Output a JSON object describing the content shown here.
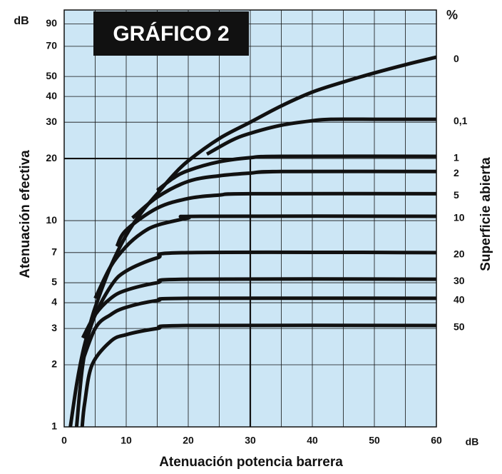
{
  "chart_data": {
    "type": "line",
    "title": "GRÁFICO 2",
    "y_axis_label": "Atenuación efectiva",
    "x_axis_label": "Atenuación potencia barrera",
    "y2_axis_label": "Superficie abierta",
    "y_unit": "dB",
    "x_unit": "dB",
    "series_unit": "%",
    "log_y": true,
    "grid": true,
    "background": "#cce6f5",
    "line_color": "#111111",
    "xlim": [
      0,
      60
    ],
    "xticks": [
      0,
      10,
      20,
      30,
      40,
      50,
      60
    ],
    "x_minor_grid": [
      5,
      15,
      25,
      35,
      45,
      55
    ],
    "ylim": [
      1,
      105
    ],
    "yticks": [
      1,
      2,
      3,
      4,
      5,
      7,
      10,
      20,
      30,
      40,
      50,
      70,
      90
    ],
    "reference": {
      "x": 30,
      "y": 20
    },
    "series": [
      {
        "name": "0",
        "x": [
          1,
          2,
          3,
          4,
          5,
          7.5,
          10,
          12.5,
          15,
          17.5,
          20,
          25,
          30,
          35,
          40,
          45,
          50,
          55,
          60
        ],
        "values": [
          1,
          1.6,
          2.3,
          3,
          3.8,
          6,
          8.5,
          11,
          13.5,
          16.5,
          19.5,
          25,
          30,
          36,
          42,
          47,
          52,
          57,
          62
        ]
      },
      {
        "name": "0,1",
        "x": [
          23,
          27,
          30,
          35,
          40,
          43,
          50,
          60
        ],
        "values": [
          21,
          24.5,
          26.5,
          29,
          30.5,
          31,
          31,
          31
        ]
      },
      {
        "name": "1",
        "x": [
          15,
          17.5,
          20,
          25,
          30,
          35,
          60
        ],
        "values": [
          14,
          16,
          17.5,
          19.3,
          20.2,
          20.5,
          20.5
        ]
      },
      {
        "name": "2",
        "x": [
          11,
          15,
          20,
          25,
          30,
          35,
          60
        ],
        "values": [
          10.3,
          13,
          15.5,
          16.5,
          17,
          17.3,
          17.3
        ]
      },
      {
        "name": "5",
        "x": [
          8.5,
          10,
          15,
          20,
          25,
          30,
          60
        ],
        "values": [
          7.5,
          9,
          11.5,
          12.8,
          13.3,
          13.5,
          13.5
        ]
      },
      {
        "name": "10",
        "x": [
          5,
          7.5,
          10,
          12.5,
          15,
          20,
          22,
          60
        ],
        "values": [
          4.2,
          6,
          7.5,
          8.7,
          9.5,
          10.3,
          10.5,
          10.5
        ]
      },
      {
        "name": "20",
        "x": [
          2,
          3,
          4.5,
          7.5,
          10,
          15,
          20,
          60
        ],
        "values": [
          1,
          2,
          3.2,
          4.8,
          5.7,
          6.6,
          7,
          7
        ]
      },
      {
        "name": "30",
        "x": [
          3,
          5,
          7.5,
          10,
          15,
          20,
          60
        ],
        "values": [
          2.7,
          3.5,
          4.2,
          4.6,
          5,
          5.2,
          5.2
        ]
      },
      {
        "name": "40",
        "x": [
          2.5,
          5,
          7.5,
          10,
          15,
          20,
          60
        ],
        "values": [
          1.9,
          3,
          3.5,
          3.8,
          4.1,
          4.2,
          4.2
        ]
      },
      {
        "name": "50",
        "x": [
          2.9,
          3.3,
          4.5,
          7.5,
          10,
          15,
          20,
          60
        ],
        "values": [
          1,
          1.3,
          2,
          2.6,
          2.8,
          3,
          3.1,
          3.1
        ]
      }
    ]
  }
}
